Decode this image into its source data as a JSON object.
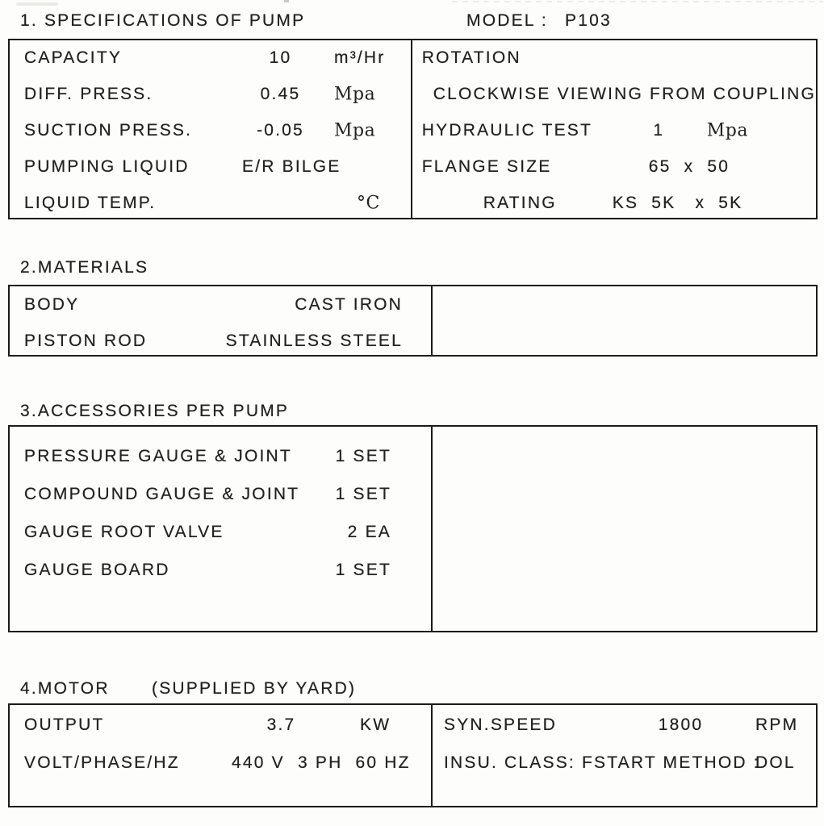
{
  "colors": {
    "ink": "#222222",
    "border": "#1b1b1b",
    "background": "#fdfdfc"
  },
  "header": {
    "section1_title": "1. SPECIFICATIONS OF PUMP",
    "model_label": "MODEL :",
    "model_value": "P103"
  },
  "spec_table": {
    "left_rows": [
      {
        "label": "CAPACITY",
        "value": "10",
        "unit": "m³/Hr"
      },
      {
        "label": "DIFF. PRESS.",
        "value": "0.45",
        "unit": "Mpa"
      },
      {
        "label": "SUCTION PRESS.",
        "value": "-0.05",
        "unit": "Mpa"
      },
      {
        "label": "PUMPING LIQUID",
        "value": "E/R BILGE",
        "unit": ""
      },
      {
        "label": "LIQUID TEMP.",
        "value": "",
        "unit": "°C"
      }
    ],
    "right_rows": [
      {
        "label": "ROTATION",
        "value": "",
        "unit": ""
      },
      {
        "label": "CLOCKWISE VIEWING FROM COUPLING",
        "value": "",
        "unit": ""
      },
      {
        "label": "HYDRAULIC TEST",
        "value": "1",
        "unit": "Mpa"
      },
      {
        "label": "FLANGE SIZE",
        "value": "65  x  50",
        "unit": ""
      },
      {
        "label": "RATING",
        "value": "KS  5K   x  5K",
        "unit": ""
      }
    ]
  },
  "materials": {
    "title": "2.MATERIALS",
    "rows": [
      {
        "label": "BODY",
        "value": "CAST IRON"
      },
      {
        "label": "PISTON ROD",
        "value": "STAINLESS STEEL"
      }
    ]
  },
  "accessories": {
    "title": "3.ACCESSORIES PER PUMP",
    "rows": [
      {
        "label": "PRESSURE GAUGE & JOINT",
        "value": "1 SET"
      },
      {
        "label": "COMPOUND GAUGE & JOINT",
        "value": "1 SET"
      },
      {
        "label": "GAUGE ROOT VALVE",
        "value": "2 EA"
      },
      {
        "label": "GAUGE BOARD",
        "value": "1 SET"
      }
    ]
  },
  "motor": {
    "title": "4.MOTOR",
    "title_suffix": "(SUPPLIED BY YARD)",
    "left_rows": [
      {
        "label": "OUTPUT",
        "value": "3.7",
        "unit": "KW"
      },
      {
        "label": "VOLT/PHASE/HZ",
        "value": "440 V  3 PH  60 HZ",
        "unit": ""
      }
    ],
    "right_rows": [
      {
        "label": "SYN.SPEED",
        "value": "1800",
        "unit": "RPM"
      },
      {
        "label": "INSU. CLASS: F",
        "value": "START METHOD :",
        "unit": "DOL"
      }
    ]
  }
}
